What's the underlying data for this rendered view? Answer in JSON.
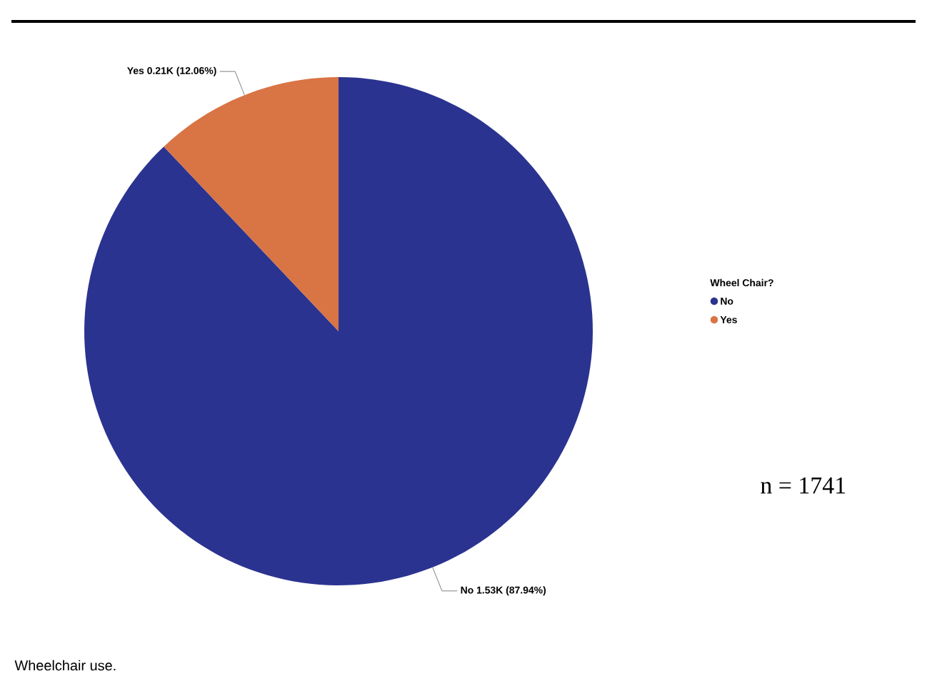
{
  "chart_data": {
    "type": "pie",
    "categories": [
      "No",
      "Yes"
    ],
    "values": [
      87.94,
      12.06
    ],
    "colors": [
      "#2b3390",
      "#d97444"
    ],
    "value_labels": [
      "No 1.53K (87.94%)",
      "Yes 0.21K (12.06%)"
    ],
    "legend_title": "Wheel Chair?",
    "legend": "right",
    "annotations": [
      "n = 1741",
      "Wheelchair use."
    ]
  }
}
